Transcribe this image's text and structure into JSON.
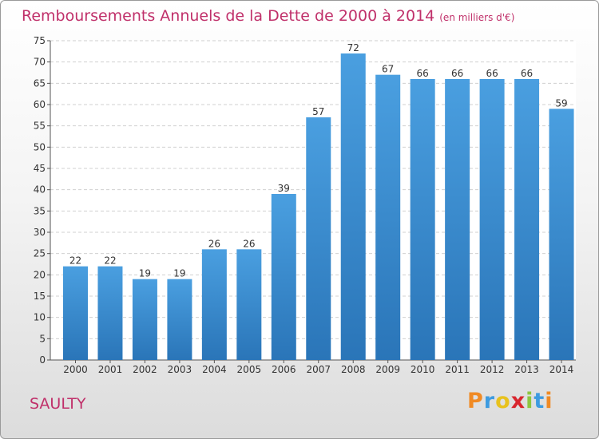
{
  "title": "Remboursements Annuels de la Dette de 2000 à 2014",
  "title_unit": "(en milliers d'€)",
  "place": "SAULTY",
  "logo": {
    "letters": [
      "P",
      "r",
      "o",
      "x",
      "i",
      "t",
      "i"
    ],
    "colors": [
      "#f08a24",
      "#3d9be0",
      "#e8c21e",
      "#d8262e",
      "#8dc63f",
      "#3d9be0",
      "#f08a24"
    ]
  },
  "colors": {
    "bar": "#4a9fe0",
    "bar_dark": "#2a75b8",
    "title": "#c0306a"
  },
  "chart_data": {
    "type": "bar",
    "title": "Remboursements Annuels de la Dette de 2000 à 2014",
    "categories": [
      "2000",
      "2001",
      "2002",
      "2003",
      "2004",
      "2005",
      "2006",
      "2007",
      "2008",
      "2009",
      "2010",
      "2011",
      "2012",
      "2013",
      "2014"
    ],
    "values": [
      22,
      22,
      19,
      19,
      26,
      26,
      39,
      57,
      72,
      67,
      66,
      66,
      66,
      66,
      59
    ],
    "xlabel": "",
    "ylabel": "",
    "ylim": [
      0,
      75
    ],
    "yticks": [
      0,
      5,
      10,
      15,
      20,
      25,
      30,
      35,
      40,
      45,
      50,
      55,
      60,
      65,
      70,
      75
    ],
    "grid": true,
    "legend": "none"
  }
}
